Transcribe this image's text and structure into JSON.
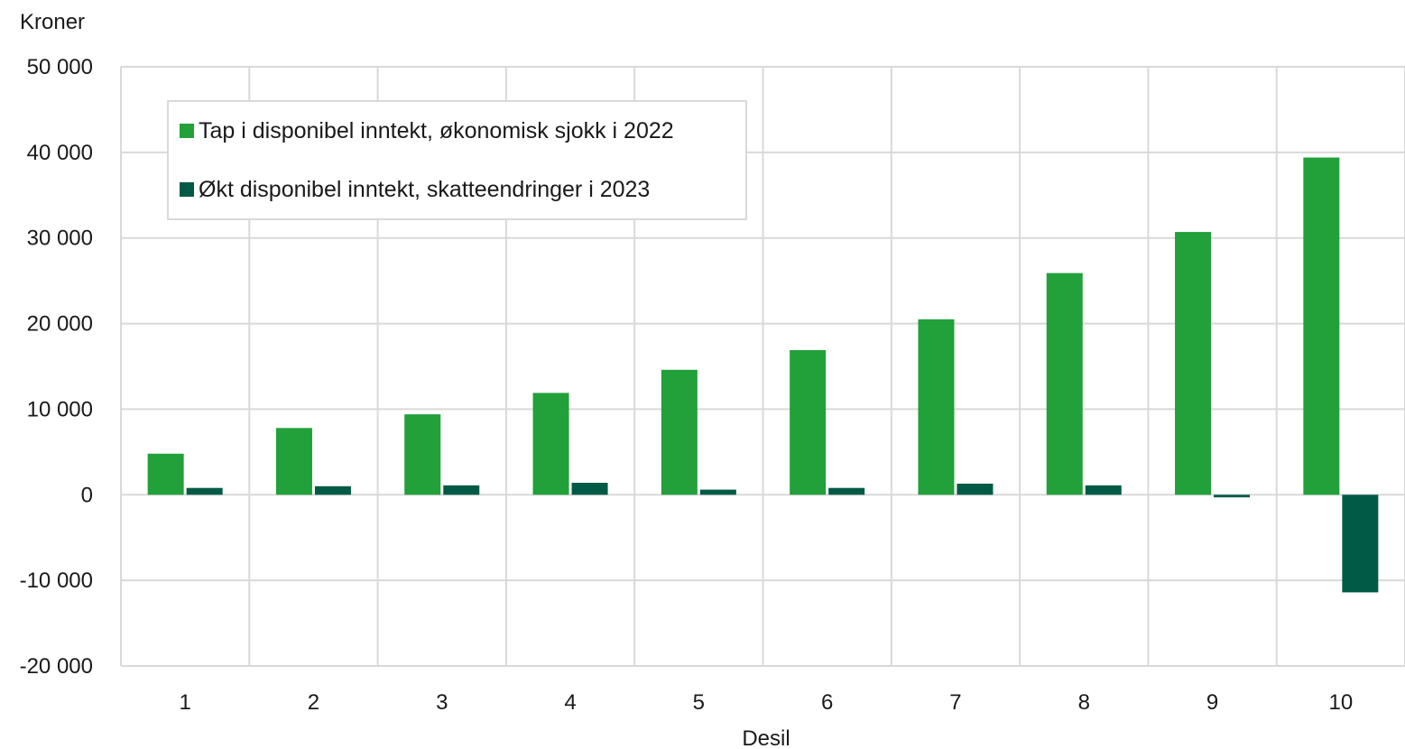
{
  "chart_data": {
    "type": "bar",
    "ylabel": "Kroner",
    "xlabel": "Desil",
    "categories": [
      "1",
      "2",
      "3",
      "4",
      "5",
      "6",
      "7",
      "8",
      "9",
      "10"
    ],
    "series": [
      {
        "name": "Tap i disponibel inntekt, økonomisk sjokk i 2022",
        "color": "#22a03a",
        "values": [
          4800,
          7800,
          9400,
          11900,
          14600,
          16900,
          20500,
          25900,
          30700,
          39400
        ]
      },
      {
        "name": "Økt disponibel inntekt, skatteendringer i 2023",
        "color": "#005a46",
        "values": [
          800,
          1000,
          1100,
          1400,
          600,
          800,
          1300,
          1100,
          -300,
          -11400
        ]
      }
    ],
    "ylim": [
      -20000,
      50000
    ],
    "yticks": [
      50000,
      40000,
      30000,
      20000,
      10000,
      0,
      -10000,
      -20000
    ],
    "ytick_labels": [
      "50 000",
      "40 000",
      "30 000",
      "20 000",
      "10 000",
      "0",
      "-10 000",
      "-20 000"
    ],
    "grid": true,
    "legend_position": "top-left"
  }
}
